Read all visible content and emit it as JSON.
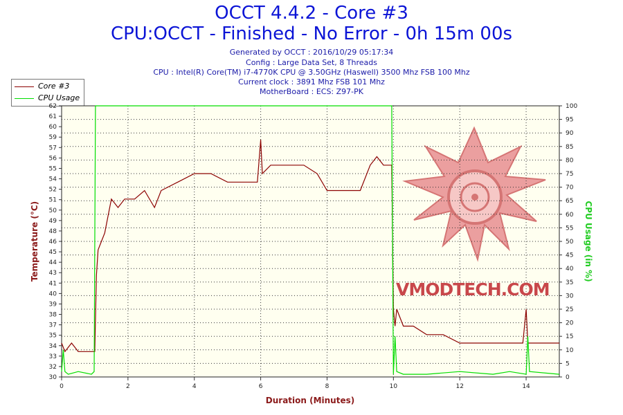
{
  "header": {
    "title": "OCCT 4.4.2 - Core #3",
    "subtitle": "CPU:OCCT - Finished - No Error - 0h 15m 00s",
    "info_lines": [
      "Generated by OCCT : 2016/10/29 05:17:34",
      "Config : Large Data Set, 8 Threads",
      "CPU : Intel(R) Core(TM) i7-4770K CPU @ 3.50GHz (Haswell) 3500 Mhz FSB 100 Mhz",
      "Current clock : 3891 Mhz FSB 101 Mhz",
      "MotherBoard : ECS: Z97-PK"
    ]
  },
  "watermark": "VMODTECH.COM",
  "colors": {
    "core": "#8b0000",
    "usage": "#00dd00",
    "title": "#0b14d6",
    "info": "#1a1aa8",
    "plot_bg": "#fffff0",
    "grid": "#333333"
  },
  "chart_data": {
    "type": "line",
    "xlabel": "Duration (Minutes)",
    "ylabel": "Temperature (°C)",
    "y2label": "CPU Usage (in %)",
    "xlim": [
      0,
      15
    ],
    "ylim": [
      30,
      62
    ],
    "y2lim": [
      0,
      100
    ],
    "x_ticks": [
      "0",
      "2",
      "4",
      "6",
      "8",
      "10",
      "12",
      "14"
    ],
    "y_ticks": [
      "30",
      "32",
      "33",
      "34",
      "35",
      "37",
      "38",
      "39",
      "40",
      "41",
      "43",
      "44",
      "45",
      "46",
      "48",
      "49",
      "50",
      "51",
      "52",
      "54",
      "55",
      "56",
      "57",
      "59",
      "60",
      "61",
      "62"
    ],
    "y2_ticks": [
      "0",
      "5",
      "10",
      "15",
      "20",
      "25",
      "30",
      "35",
      "40",
      "45",
      "50",
      "55",
      "60",
      "65",
      "70",
      "75",
      "80",
      "85",
      "90",
      "95",
      "100"
    ],
    "grid": true,
    "legend": "top-left",
    "series": [
      {
        "name": "Core #3",
        "axis": "left",
        "x": [
          0,
          0.1,
          0.3,
          0.5,
          0.7,
          0.9,
          1.0,
          1.05,
          1.1,
          1.2,
          1.3,
          1.4,
          1.5,
          1.7,
          1.9,
          2.2,
          2.5,
          2.8,
          3.0,
          3.5,
          4.0,
          4.5,
          5.0,
          5.5,
          5.9,
          6.0,
          6.05,
          6.3,
          6.8,
          7.3,
          7.7,
          8.0,
          8.5,
          9.0,
          9.3,
          9.5,
          9.7,
          9.9,
          9.95,
          10.0,
          10.05,
          10.1,
          10.3,
          10.6,
          11.0,
          11.5,
          12.0,
          12.5,
          13.0,
          13.5,
          13.9,
          14.0,
          14.05,
          14.2,
          14.5,
          14.8,
          15.0
        ],
        "y": [
          34,
          33,
          34,
          33,
          33,
          33,
          33,
          42,
          45,
          46,
          47,
          49,
          51,
          50,
          51,
          51,
          52,
          50,
          52,
          53,
          54,
          54,
          53,
          53,
          53,
          58,
          54,
          55,
          55,
          55,
          54,
          52,
          52,
          52,
          55,
          56,
          55,
          55,
          55,
          38,
          36,
          38,
          36,
          36,
          35,
          35,
          34,
          34,
          34,
          34,
          34,
          38,
          34,
          34,
          34,
          34,
          34
        ]
      },
      {
        "name": "CPU Usage",
        "axis": "right",
        "x": [
          0,
          0.05,
          0.1,
          0.2,
          0.5,
          0.9,
          0.98,
          1.02,
          1.05,
          9.95,
          10.0,
          10.05,
          10.1,
          10.3,
          11.0,
          12.0,
          13.0,
          13.5,
          14.0,
          14.05,
          14.1,
          15.0
        ],
        "y": [
          2,
          10,
          2,
          1,
          2,
          1,
          2,
          100,
          100,
          100,
          1,
          15,
          2,
          1,
          1,
          2,
          1,
          2,
          1,
          15,
          2,
          1
        ]
      }
    ]
  }
}
